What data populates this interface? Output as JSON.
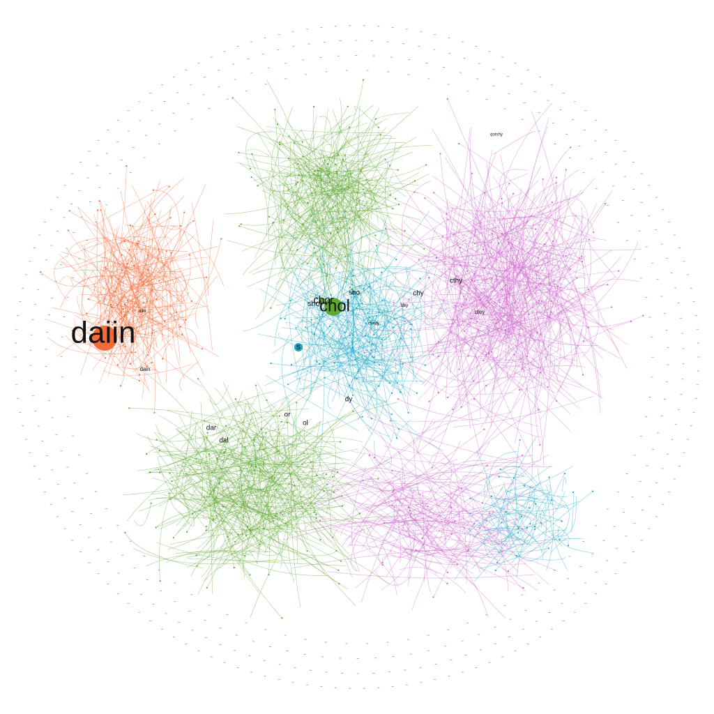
{
  "colors": {
    "orange": "#f26b3a",
    "green": "#5fa833",
    "cyan": "#1aa6c4",
    "purple": "#cc66cc",
    "gray": "#888888"
  },
  "labels": {
    "daiin": "daiin",
    "chol": "chol",
    "chor": "chor",
    "shol": "shol",
    "sho": "sho",
    "s": "s",
    "chy": "chy",
    "cthy": "cthy",
    "ctey": "ctey",
    "dy": "dy",
    "or": "or",
    "ol": "ol",
    "dar": "dar",
    "dal": "dal",
    "dain": "dain",
    "aiin": "aiin",
    "qotshy": "qotshy",
    "shy": "shy",
    "chedy": "chedy"
  }
}
